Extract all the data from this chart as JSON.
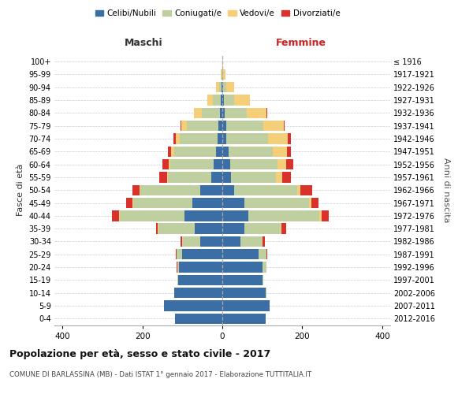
{
  "age_groups": [
    "0-4",
    "5-9",
    "10-14",
    "15-19",
    "20-24",
    "25-29",
    "30-34",
    "35-39",
    "40-44",
    "45-49",
    "50-54",
    "55-59",
    "60-64",
    "65-69",
    "70-74",
    "75-79",
    "80-84",
    "85-89",
    "90-94",
    "95-99",
    "100+"
  ],
  "birth_years": [
    "2012-2016",
    "2007-2011",
    "2002-2006",
    "1997-2001",
    "1992-1996",
    "1987-1991",
    "1982-1986",
    "1977-1981",
    "1972-1976",
    "1967-1971",
    "1962-1966",
    "1957-1961",
    "1952-1956",
    "1947-1951",
    "1942-1946",
    "1937-1941",
    "1932-1936",
    "1927-1931",
    "1922-1926",
    "1917-1921",
    "≤ 1916"
  ],
  "male": {
    "celibi": [
      118,
      145,
      120,
      110,
      108,
      100,
      55,
      70,
      95,
      75,
      55,
      28,
      22,
      15,
      12,
      10,
      6,
      3,
      1,
      0,
      0
    ],
    "coniugati": [
      0,
      1,
      1,
      2,
      5,
      15,
      45,
      90,
      162,
      148,
      150,
      108,
      108,
      105,
      95,
      78,
      45,
      20,
      6,
      2,
      0
    ],
    "vedovi": [
      0,
      0,
      0,
      0,
      0,
      0,
      0,
      1,
      2,
      2,
      2,
      3,
      5,
      8,
      10,
      15,
      20,
      15,
      8,
      2,
      0
    ],
    "divorziati": [
      0,
      0,
      0,
      0,
      1,
      2,
      5,
      5,
      18,
      15,
      18,
      18,
      15,
      8,
      5,
      2,
      0,
      0,
      0,
      0,
      0
    ]
  },
  "female": {
    "nubili": [
      108,
      118,
      108,
      100,
      100,
      90,
      45,
      55,
      65,
      55,
      30,
      22,
      20,
      15,
      10,
      10,
      6,
      4,
      2,
      0,
      0
    ],
    "coniugate": [
      0,
      1,
      2,
      3,
      10,
      20,
      55,
      90,
      178,
      162,
      158,
      112,
      118,
      112,
      105,
      92,
      55,
      25,
      8,
      2,
      0
    ],
    "vedove": [
      0,
      0,
      0,
      0,
      0,
      0,
      1,
      2,
      5,
      5,
      8,
      15,
      22,
      35,
      48,
      52,
      50,
      40,
      20,
      5,
      1
    ],
    "divorziate": [
      0,
      0,
      0,
      0,
      1,
      2,
      5,
      12,
      18,
      18,
      28,
      22,
      18,
      10,
      8,
      2,
      2,
      0,
      0,
      0,
      0
    ]
  },
  "colors": {
    "celibi": "#3B6EA5",
    "coniugati": "#BFCFA0",
    "vedovi": "#F5CE7A",
    "divorziati": "#D9312B"
  },
  "xlim": 420,
  "title": "Popolazione per età, sesso e stato civile - 2017",
  "subtitle": "COMUNE DI BARLASSINA (MB) - Dati ISTAT 1° gennaio 2017 - Elaborazione TUTTITALIA.IT",
  "xlabel_left": "Maschi",
  "xlabel_right": "Femmine",
  "ylabel_left": "Fasce di età",
  "ylabel_right": "Anni di nascita",
  "legend_labels": [
    "Celibi/Nubili",
    "Coniugati/e",
    "Vedovi/e",
    "Divorziati/e"
  ]
}
